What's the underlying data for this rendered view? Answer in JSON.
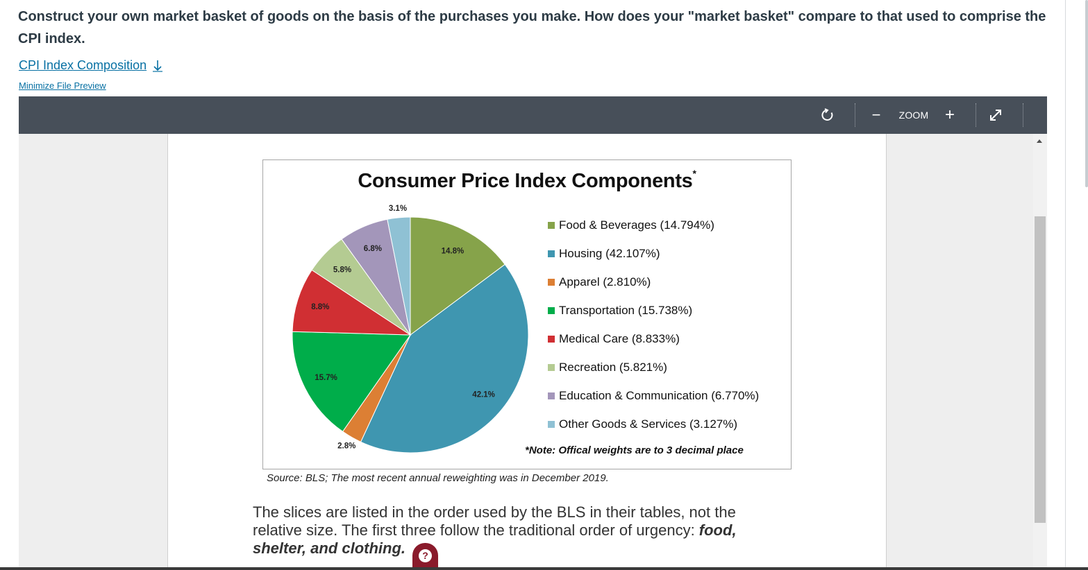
{
  "question": "Construct your own market basket of goods on the basis of the purchases you make. How does your \"market basket\" compare to that used to comprise the CPI index.",
  "file_link": "CPI Index Composition",
  "minimize_link": "Minimize File Preview",
  "toolbar": {
    "rotate_icon": "rotate-icon",
    "zoom_out": "−",
    "zoom_label": "ZOOM",
    "zoom_in": "+",
    "fullscreen_icon": "expand-icon"
  },
  "chart_data": {
    "type": "pie",
    "title": "Consumer Price Index Components",
    "title_mark": "*",
    "slices": [
      {
        "name": "Food & Beverages",
        "legend": "Food & Beverages (14.794%)",
        "value": 14.794,
        "label": "14.8%",
        "color": "#86a34a"
      },
      {
        "name": "Housing",
        "legend": "Housing (42.107%)",
        "value": 42.107,
        "label": "42.1%",
        "color": "#3f96b0"
      },
      {
        "name": "Apparel",
        "legend": "Apparel (2.810%)",
        "value": 2.81,
        "label": "2.8%",
        "color": "#dc7f34"
      },
      {
        "name": "Transportation",
        "legend": "Transportation (15.738%)",
        "value": 15.738,
        "label": "15.7%",
        "color": "#00ad4a"
      },
      {
        "name": "Medical Care",
        "legend": "Medical Care (8.833%)",
        "value": 8.833,
        "label": "8.8%",
        "color": "#d02f33"
      },
      {
        "name": "Recreation",
        "legend": "Recreation (5.821%)",
        "value": 5.821,
        "label": "5.8%",
        "color": "#b4cb92"
      },
      {
        "name": "Education & Communication",
        "legend": "Education & Communication (6.770%)",
        "value": 6.77,
        "label": "6.8%",
        "color": "#a396ba"
      },
      {
        "name": "Other Goods & Services",
        "legend": "Other Goods & Services (3.127%)",
        "value": 3.127,
        "label": "3.1%",
        "color": "#8fc1d4"
      }
    ],
    "note": "*Note: Offical weights are to 3 decimal place",
    "source": "Source: BLS; The most recent annual reweighting was in December 2019."
  },
  "paragraph": {
    "text": "The slices are listed in the order used by the BLS in their tables, not the relative size. The first three follow the traditional order of urgency: ",
    "bold": "food, shelter, and clothing."
  },
  "help_glyph": "?"
}
